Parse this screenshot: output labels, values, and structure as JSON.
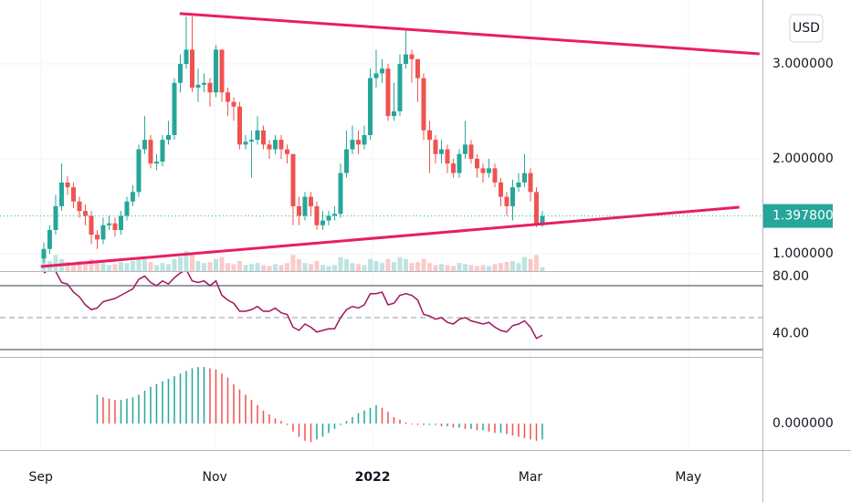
{
  "chart_data": [
    {
      "type": "candlestick",
      "currency": "USD",
      "x": [
        0,
        1,
        2,
        3,
        4,
        5,
        6,
        7,
        8,
        9,
        10,
        11,
        12,
        13,
        14,
        15,
        16,
        17,
        18,
        19,
        20,
        21,
        22,
        23,
        24,
        25,
        26,
        27,
        28,
        29,
        30,
        31,
        32,
        33,
        34,
        35,
        36,
        37,
        38,
        39,
        40,
        41,
        42,
        43,
        44,
        45,
        46,
        47,
        48,
        49,
        50,
        51,
        52,
        53,
        54,
        55,
        56,
        57,
        58,
        59,
        60,
        61,
        62,
        63,
        64,
        65,
        66,
        67,
        68,
        69,
        70,
        71,
        72,
        73,
        74,
        75,
        76,
        77,
        78,
        79,
        80,
        81,
        82,
        83,
        84
      ],
      "open": [
        0.95,
        1.05,
        1.25,
        1.5,
        1.75,
        1.7,
        1.55,
        1.45,
        1.4,
        1.2,
        1.15,
        1.3,
        1.32,
        1.25,
        1.4,
        1.55,
        1.65,
        2.1,
        2.2,
        1.95,
        1.97,
        2.2,
        2.25,
        2.8,
        3.0,
        3.15,
        2.75,
        2.78,
        2.8,
        2.7,
        3.15,
        2.7,
        2.6,
        2.55,
        2.15,
        2.18,
        2.2,
        2.3,
        2.15,
        2.1,
        2.2,
        2.1,
        2.05,
        1.5,
        1.4,
        1.6,
        1.5,
        1.3,
        1.35,
        1.4,
        1.42,
        1.85,
        2.1,
        2.2,
        2.15,
        2.25,
        2.85,
        2.9,
        2.95,
        2.45,
        2.5,
        3.0,
        3.1,
        3.05,
        2.85,
        2.3,
        2.2,
        2.05,
        2.1,
        1.95,
        1.85,
        2.05,
        2.15,
        2.0,
        1.9,
        1.85,
        1.9,
        1.75,
        1.6,
        1.5,
        1.7,
        1.75,
        1.85,
        1.65,
        1.3
      ],
      "high": [
        1.12,
        1.3,
        1.62,
        1.95,
        1.82,
        1.75,
        1.6,
        1.52,
        1.45,
        1.25,
        1.38,
        1.4,
        1.38,
        1.45,
        1.6,
        1.72,
        2.15,
        2.45,
        2.25,
        2.05,
        2.25,
        2.4,
        2.85,
        3.1,
        3.5,
        3.5,
        2.95,
        2.9,
        2.85,
        3.2,
        3.15,
        2.75,
        2.65,
        2.6,
        2.25,
        2.3,
        2.45,
        2.35,
        2.2,
        2.25,
        2.25,
        2.15,
        2.05,
        1.6,
        1.65,
        1.65,
        1.55,
        1.45,
        1.45,
        1.5,
        1.95,
        2.3,
        2.35,
        2.3,
        2.35,
        2.95,
        3.15,
        3.05,
        3.0,
        2.8,
        3.1,
        3.35,
        3.15,
        3.05,
        2.9,
        2.4,
        2.25,
        2.2,
        2.15,
        2.0,
        2.1,
        2.4,
        2.2,
        2.05,
        1.95,
        2.0,
        1.95,
        1.8,
        1.65,
        1.78,
        1.85,
        2.05,
        1.9,
        1.7,
        1.45
      ],
      "low": [
        0.9,
        1.0,
        1.2,
        1.45,
        1.62,
        1.48,
        1.38,
        1.3,
        1.1,
        1.05,
        1.1,
        1.25,
        1.18,
        1.2,
        1.35,
        1.5,
        1.6,
        2.05,
        1.9,
        1.88,
        1.92,
        2.15,
        2.2,
        2.7,
        2.95,
        2.7,
        2.6,
        2.7,
        2.55,
        2.65,
        2.6,
        2.45,
        2.4,
        2.1,
        2.1,
        1.8,
        2.15,
        2.1,
        2.0,
        2.05,
        2.0,
        1.95,
        1.3,
        1.3,
        1.35,
        1.4,
        1.25,
        1.25,
        1.3,
        1.35,
        1.38,
        1.8,
        2.05,
        2.05,
        2.1,
        2.2,
        2.75,
        2.8,
        2.4,
        2.4,
        2.45,
        2.95,
        2.8,
        2.6,
        2.2,
        1.85,
        1.95,
        1.95,
        1.85,
        1.8,
        1.8,
        2.0,
        1.95,
        1.8,
        1.75,
        1.8,
        1.7,
        1.5,
        1.4,
        1.35,
        1.65,
        1.7,
        1.55,
        1.28,
        1.28
      ],
      "close": [
        1.05,
        1.25,
        1.5,
        1.75,
        1.7,
        1.55,
        1.45,
        1.4,
        1.2,
        1.15,
        1.3,
        1.32,
        1.25,
        1.4,
        1.55,
        1.65,
        2.1,
        2.2,
        1.95,
        1.97,
        2.2,
        2.25,
        2.8,
        3.0,
        3.15,
        2.75,
        2.78,
        2.8,
        2.7,
        3.15,
        2.7,
        2.6,
        2.55,
        2.15,
        2.18,
        2.2,
        2.3,
        2.15,
        2.1,
        2.2,
        2.1,
        2.05,
        1.5,
        1.4,
        1.6,
        1.5,
        1.3,
        1.35,
        1.4,
        1.42,
        1.85,
        2.1,
        2.2,
        2.15,
        2.25,
        2.85,
        2.9,
        2.95,
        2.45,
        2.5,
        3.0,
        3.1,
        3.05,
        2.85,
        2.3,
        2.2,
        2.05,
        2.1,
        1.95,
        1.85,
        2.05,
        2.15,
        2.0,
        1.9,
        1.85,
        1.9,
        1.75,
        1.6,
        1.5,
        1.7,
        1.75,
        1.85,
        1.65,
        1.3,
        1.3978
      ],
      "volume": [
        14,
        10,
        16,
        12,
        9,
        8,
        10,
        7,
        12,
        9,
        8,
        6,
        7,
        9,
        8,
        10,
        14,
        12,
        9,
        6,
        8,
        7,
        12,
        14,
        20,
        18,
        10,
        8,
        9,
        12,
        14,
        8,
        7,
        10,
        6,
        7,
        8,
        6,
        5,
        7,
        6,
        8,
        16,
        12,
        8,
        7,
        10,
        6,
        5,
        6,
        14,
        12,
        8,
        7,
        6,
        12,
        10,
        8,
        12,
        9,
        14,
        12,
        8,
        9,
        12,
        8,
        6,
        7,
        6,
        5,
        8,
        7,
        6,
        5,
        6,
        5,
        7,
        8,
        9,
        10,
        8,
        14,
        12,
        16,
        4
      ],
      "last_value_label": "1.397800",
      "up_color": "#26a69a",
      "down_color": "#ef5350",
      "trend_lines": [
        {
          "x": [
            22.9,
            120.6
          ],
          "y": [
            3.53,
            3.106
          ]
        },
        {
          "x": [
            -0.5,
            117.2
          ],
          "y": [
            0.865,
            1.49
          ]
        }
      ],
      "trend_color": "#e91e63",
      "xlim": [
        -7.38,
        121.08
      ],
      "xticks": [
        {
          "value": -0.5,
          "label": "Sep"
        },
        {
          "value": 28.8,
          "label": "Nov"
        },
        {
          "value": 55.4,
          "label": "2022"
        },
        {
          "value": 82.0,
          "label": "Mar"
        },
        {
          "value": 108.6,
          "label": "May"
        }
      ],
      "ylim": [
        0.817,
        3.673
      ],
      "yticks": [
        {
          "value": 1,
          "label": "1.000000"
        },
        {
          "value": 2,
          "label": "2.000000"
        },
        {
          "value": 3,
          "label": "3.000000"
        }
      ],
      "grid": true
    },
    {
      "type": "line",
      "color": "#a0175f",
      "values": [
        78,
        80,
        79,
        72,
        71,
        66,
        63,
        58,
        55,
        56,
        60,
        61,
        62,
        64,
        66,
        68,
        74,
        76,
        72,
        70,
        73,
        71,
        75,
        78,
        80,
        73,
        72,
        73,
        70,
        73,
        64,
        61,
        59,
        54,
        54,
        55,
        57,
        54,
        54,
        56,
        53,
        52,
        44,
        42,
        46,
        44,
        41,
        42,
        43,
        43,
        50,
        55,
        57,
        56,
        58,
        65,
        65,
        66,
        58,
        59,
        64,
        65,
        64,
        61,
        52,
        51,
        49,
        50,
        47,
        46,
        49,
        50,
        48,
        47,
        46,
        47,
        44,
        42,
        41,
        45,
        46,
        48,
        44,
        37,
        39
      ],
      "levels": [
        70,
        50,
        30
      ],
      "ylim": [
        25.43,
        78.57
      ],
      "yticks": [
        {
          "value": 80,
          "label": "80.00"
        },
        {
          "value": 40,
          "label": "40.00"
        }
      ]
    },
    {
      "type": "histogram",
      "values": [
        null,
        null,
        null,
        null,
        null,
        null,
        null,
        null,
        null,
        0.22,
        0.2,
        0.19,
        0.18,
        0.18,
        0.19,
        0.2,
        0.22,
        0.25,
        0.28,
        0.3,
        0.32,
        0.34,
        0.36,
        0.38,
        0.4,
        0.42,
        0.43,
        0.43,
        0.42,
        0.41,
        0.38,
        0.35,
        0.3,
        0.26,
        0.22,
        0.18,
        0.14,
        0.1,
        0.07,
        0.04,
        0.02,
        -0.01,
        -0.06,
        -0.1,
        -0.13,
        -0.14,
        -0.12,
        -0.1,
        -0.07,
        -0.04,
        -0.01,
        0.02,
        0.05,
        0.08,
        0.1,
        0.12,
        0.14,
        0.12,
        0.09,
        0.05,
        0.03,
        0.01,
        0.0,
        -0.01,
        -0.01,
        -0.01,
        -0.01,
        -0.02,
        -0.02,
        -0.03,
        -0.03,
        -0.04,
        -0.04,
        -0.05,
        -0.05,
        -0.06,
        -0.07,
        -0.07,
        -0.08,
        -0.09,
        -0.1,
        -0.11,
        -0.12,
        -0.13,
        -0.12
      ],
      "ylim": [
        -0.2,
        0.5
      ],
      "yticks": [
        {
          "value": 0,
          "label": "0.000000"
        }
      ]
    }
  ]
}
